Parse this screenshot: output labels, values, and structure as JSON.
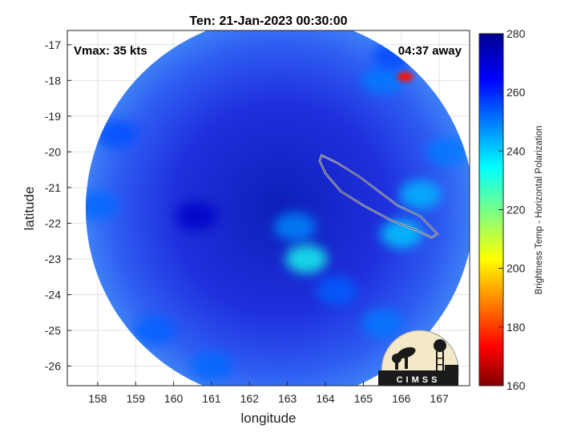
{
  "title": "Ten: 21-Jan-2023 00:30:00",
  "vmax_label": "Vmax: 35 kts",
  "time_away_label": "04:37 away",
  "logo_text": "CIMSS",
  "chart_data": {
    "type": "heatmap",
    "xlabel": "longitude",
    "ylabel": "latitude",
    "xlim": [
      157.2,
      167.8
    ],
    "ylim": [
      -26.55,
      -16.6
    ],
    "xticks": [
      "158",
      "159",
      "160",
      "161",
      "162",
      "163",
      "164",
      "165",
      "166",
      "167"
    ],
    "yticks": [
      "-17",
      "-18",
      "-19",
      "-20",
      "-21",
      "-22",
      "-23",
      "-24",
      "-25",
      "-26"
    ],
    "grid": true,
    "colorbar": {
      "label": "Brightness Temp - Horizontal Polarization",
      "min": 160,
      "max": 280,
      "ticks": [
        "280",
        "260",
        "240",
        "220",
        "200",
        "180",
        "160"
      ],
      "colormap": "jet"
    },
    "swath_center": [
      162.8,
      -21.6
    ],
    "swath_radius_deg": 5.5,
    "swath_base_value": 268,
    "features": [
      {
        "lon": 160.6,
        "lat": -21.8,
        "value": 272
      },
      {
        "lon": 158.5,
        "lat": -19.5,
        "value": 255
      },
      {
        "lon": 158.0,
        "lat": -21.5,
        "value": 252
      },
      {
        "lon": 159.5,
        "lat": -25.0,
        "value": 253
      },
      {
        "lon": 161.0,
        "lat": -26.0,
        "value": 252
      },
      {
        "lon": 165.5,
        "lat": -18.0,
        "value": 250
      },
      {
        "lon": 165.8,
        "lat": -17.3,
        "value": 256
      },
      {
        "lon": 166.5,
        "lat": -21.2,
        "value": 242
      },
      {
        "lon": 167.2,
        "lat": -20.0,
        "value": 250
      },
      {
        "lon": 166.0,
        "lat": -22.3,
        "value": 240
      },
      {
        "lon": 163.2,
        "lat": -22.1,
        "value": 248
      },
      {
        "lon": 163.5,
        "lat": -23.0,
        "value": 232
      },
      {
        "lon": 164.3,
        "lat": -23.9,
        "value": 253
      },
      {
        "lon": 165.5,
        "lat": -24.8,
        "value": 250
      },
      {
        "lon": 166.1,
        "lat": -17.9,
        "value": 175
      }
    ],
    "coastline_new_caledonia": [
      [
        163.9,
        -20.1
      ],
      [
        164.3,
        -20.3
      ],
      [
        164.9,
        -20.7
      ],
      [
        165.4,
        -21.1
      ],
      [
        165.9,
        -21.5
      ],
      [
        166.5,
        -21.8
      ],
      [
        166.95,
        -22.3
      ],
      [
        166.8,
        -22.4
      ],
      [
        166.4,
        -22.2
      ],
      [
        165.7,
        -21.9
      ],
      [
        165.0,
        -21.5
      ],
      [
        164.4,
        -21.1
      ],
      [
        164.0,
        -20.6
      ],
      [
        163.85,
        -20.25
      ],
      [
        163.9,
        -20.1
      ]
    ]
  }
}
